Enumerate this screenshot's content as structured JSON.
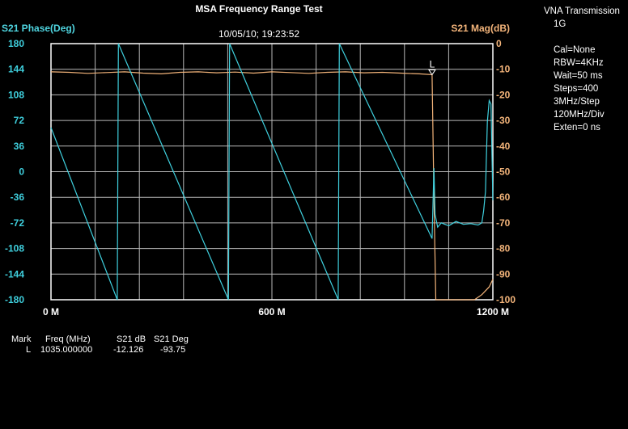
{
  "title": "MSA Frequency Range Test",
  "left_axis_label": "S21 Phase(Deg)",
  "right_axis_label": "S21 Mag(dB)",
  "timestamp": "10/05/10; 19:23:52",
  "info_panel": {
    "header": "VNA Transmission",
    "subheader": "1G",
    "lines": [
      "Cal=None",
      "RBW=4KHz",
      "Wait=50 ms",
      "Steps=400",
      "3MHz/Step",
      "120MHz/Div",
      "Exten=0 ns"
    ]
  },
  "marker_table": {
    "headers": [
      "Mark",
      "Freq (MHz)",
      "S21 dB",
      "S21 Deg"
    ],
    "row": [
      "L",
      "1035.000000",
      "-12.126",
      "-93.75"
    ]
  },
  "chart_data": {
    "type": "line",
    "xlim": [
      0,
      1200
    ],
    "x_ticks": [
      0,
      600,
      1200
    ],
    "x_tick_labels": [
      "0 M",
      "600 M",
      "1200 M"
    ],
    "y_left_lim": [
      -180,
      180
    ],
    "y_left_ticks": [
      180,
      144,
      108,
      72,
      36,
      0,
      -36,
      -72,
      -108,
      -144,
      -180
    ],
    "y_right_lim": [
      -100,
      0
    ],
    "y_right_ticks": [
      0,
      -10,
      -20,
      -30,
      -40,
      -50,
      -60,
      -70,
      -80,
      -90,
      -100
    ],
    "grid": true,
    "x_divisions": 10,
    "y_divisions": 10,
    "colors": {
      "phase": "#3fd0de",
      "magnitude": "#f3b47a",
      "grid": "#b8b8b8",
      "background": "#000000"
    },
    "marker": {
      "label": "L",
      "x": 1035,
      "y_right": -12.126
    },
    "series": [
      {
        "axis": "right",
        "points": [
          [
            0,
            -11
          ],
          [
            50,
            -11.2
          ],
          [
            100,
            -11.6
          ],
          [
            150,
            -11.3
          ],
          [
            200,
            -11.0
          ],
          [
            250,
            -11.5
          ],
          [
            300,
            -11.8
          ],
          [
            350,
            -11.2
          ],
          [
            400,
            -11.0
          ],
          [
            450,
            -11.4
          ],
          [
            500,
            -11.1
          ],
          [
            550,
            -11.5
          ],
          [
            600,
            -11.0
          ],
          [
            650,
            -11.3
          ],
          [
            700,
            -11.6
          ],
          [
            750,
            -11.2
          ],
          [
            800,
            -11.0
          ],
          [
            850,
            -11.4
          ],
          [
            900,
            -11.2
          ],
          [
            950,
            -11.5
          ],
          [
            1000,
            -11.8
          ],
          [
            1035,
            -12.1
          ],
          [
            1040,
            -60
          ],
          [
            1045,
            -100
          ],
          [
            1150,
            -100
          ],
          [
            1170,
            -98
          ],
          [
            1190,
            -95
          ],
          [
            1200,
            -92
          ]
        ]
      },
      {
        "axis": "left",
        "points": [
          [
            0,
            62
          ],
          [
            180,
            -180
          ],
          [
            183,
            180
          ],
          [
            482,
            -180
          ],
          [
            485,
            180
          ],
          [
            780,
            -180
          ],
          [
            783,
            180
          ],
          [
            1035,
            -94
          ],
          [
            1040,
            5
          ],
          [
            1043,
            -60
          ],
          [
            1050,
            -78
          ],
          [
            1060,
            -72
          ],
          [
            1080,
            -76
          ],
          [
            1100,
            -70
          ],
          [
            1120,
            -74
          ],
          [
            1140,
            -73
          ],
          [
            1160,
            -75
          ],
          [
            1170,
            -72
          ],
          [
            1175,
            -55
          ],
          [
            1180,
            -28
          ],
          [
            1185,
            70
          ],
          [
            1190,
            100
          ],
          [
            1195,
            95
          ],
          [
            1200,
            -40
          ]
        ]
      }
    ]
  }
}
